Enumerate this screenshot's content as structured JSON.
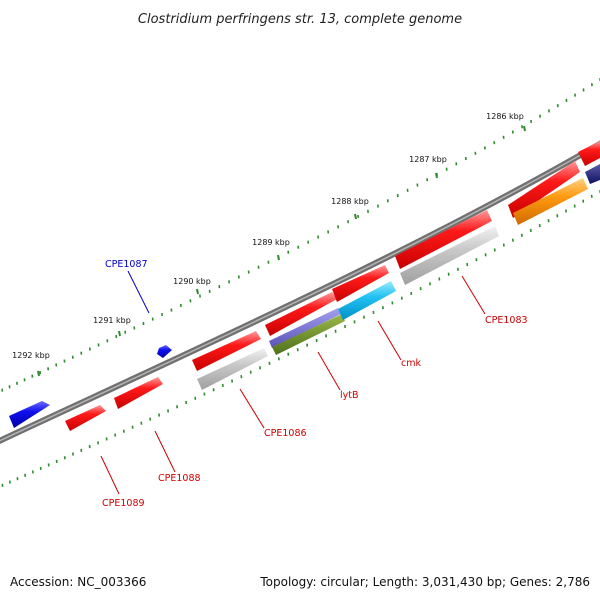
{
  "title": "Clostridium perfringens str. 13, complete genome",
  "footer": {
    "accession": "Accession: NC_003366",
    "summary": "Topology: circular; Length: 3,031,430 bp; Genes: 2,786"
  },
  "colors": {
    "backbone": "#777777",
    "tick": "#2e8b2e",
    "forward_label": "#0000cc",
    "reverse_label": "#cc0000"
  },
  "ticks": [
    "1286 kbp",
    "1287 kbp",
    "1288 kbp",
    "1289 kbp",
    "1290 kbp",
    "1291 kbp",
    "1292 kbp"
  ],
  "gene_labels": [
    {
      "name": "CPE1087",
      "strand": "forward"
    },
    {
      "name": "CPE1083",
      "strand": "reverse"
    },
    {
      "name": "cmk",
      "strand": "reverse"
    },
    {
      "name": "lytB",
      "strand": "reverse"
    },
    {
      "name": "CPE1086",
      "strand": "reverse"
    },
    {
      "name": "CPE1088",
      "strand": "reverse"
    },
    {
      "name": "CPE1089",
      "strand": "reverse"
    }
  ]
}
